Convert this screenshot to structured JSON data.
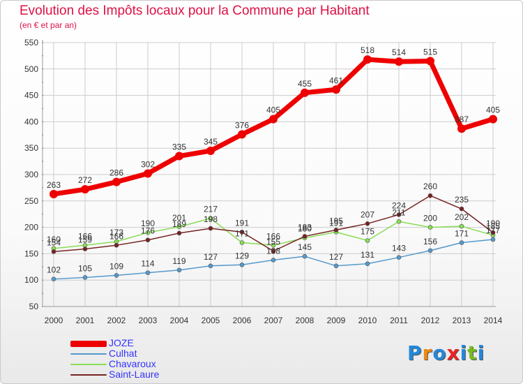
{
  "header": {
    "title": "Evolution des Impôts locaux pour la Commune par Habitant",
    "subtitle": "(en € et par an)"
  },
  "logo": {
    "letters": [
      "P",
      "r",
      "o",
      "x",
      "i",
      "t",
      "i"
    ]
  },
  "colors": {
    "title": "#dd1144",
    "legend_text": "#3333ff",
    "grid": "#cccccc",
    "logo": [
      "#2288dd",
      "#ee8811",
      "#2288dd",
      "#ee2222",
      "#2288dd",
      "#77bb22",
      "#2288dd"
    ]
  },
  "chart_data": {
    "type": "line",
    "title": "Evolution des Impôts locaux pour la Commune par Habitant",
    "subtitle": "(en € et par an)",
    "xlabel": "",
    "ylabel": "",
    "x": [
      2000,
      2001,
      2002,
      2003,
      2004,
      2005,
      2006,
      2007,
      2008,
      2009,
      2010,
      2011,
      2012,
      2013,
      2014
    ],
    "ylim": [
      50,
      550
    ],
    "yticks": [
      50,
      100,
      150,
      200,
      250,
      300,
      350,
      400,
      450,
      500,
      550
    ],
    "grid": true,
    "legend_position": "bottom-left",
    "series": [
      {
        "name": "JOZE",
        "color": "#ee0000",
        "values": [
          263,
          272,
          286,
          302,
          335,
          345,
          376,
          405,
          455,
          461,
          518,
          514,
          515,
          387,
          405
        ]
      },
      {
        "name": "Culhat",
        "color": "#5599cc",
        "values": [
          102,
          105,
          109,
          114,
          119,
          127,
          129,
          138,
          145,
          127,
          131,
          143,
          156,
          171,
          177
        ]
      },
      {
        "name": "Chavaroux",
        "color": "#88dd55",
        "values": [
          160,
          166,
          173,
          190,
          201,
          217,
          171,
          166,
          180,
          191,
          175,
          211,
          200,
          202,
          185
        ]
      },
      {
        "name": "Saint-Laure",
        "color": "#772222",
        "values": [
          154,
          159,
          166,
          176,
          189,
          198,
          191,
          155,
          183,
          195,
          207,
          224,
          260,
          235,
          190
        ]
      }
    ]
  }
}
